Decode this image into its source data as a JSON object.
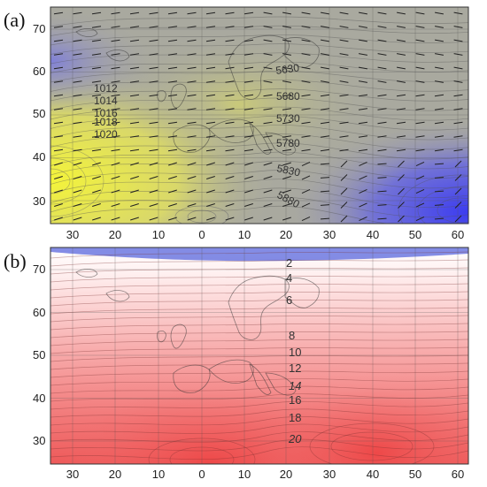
{
  "figure": {
    "panels": [
      {
        "id": "a",
        "label": "(a)",
        "y_ticks": [
          "70",
          "60",
          "50",
          "40",
          "30"
        ],
        "x_ticks": [
          "30",
          "20",
          "10",
          "0",
          "10",
          "20",
          "30",
          "40",
          "50",
          "60"
        ],
        "pressure_labels": [
          "1012",
          "1014",
          "1016",
          "1018",
          "1020"
        ],
        "height_labels": [
          "5630",
          "5680",
          "5730",
          "5780",
          "5830",
          "5880"
        ],
        "colors": {
          "high": "#f2f23a",
          "mid": "#a8a8a0",
          "low": "#4848e8"
        }
      },
      {
        "id": "b",
        "label": "(b)",
        "y_ticks": [
          "70",
          "60",
          "50",
          "40",
          "30"
        ],
        "x_ticks": [
          "30",
          "20",
          "10",
          "0",
          "10",
          "20",
          "30",
          "40",
          "50",
          "60"
        ],
        "temperature_labels": [
          "2",
          "4",
          "6",
          "8",
          "10",
          "12",
          "14",
          "16",
          "18",
          "20"
        ],
        "colors": {
          "warm": "#f05050",
          "cool": "#ffffff",
          "cold": "#6d78e0"
        }
      }
    ]
  },
  "chart_data": [
    {
      "type": "heatmap",
      "panel": "(a)",
      "xlim": [
        -35,
        65
      ],
      "ylim": [
        25,
        75
      ],
      "sea_level_pressure_contours": [
        1012,
        1014,
        1016,
        1018,
        1020
      ],
      "geopotential_height_contours": [
        5630,
        5680,
        5730,
        5780,
        5830,
        5880
      ]
    },
    {
      "type": "heatmap",
      "panel": "(b)",
      "xlim": [
        -35,
        65
      ],
      "ylim": [
        25,
        75
      ],
      "temperature_contours": [
        2,
        4,
        6,
        8,
        10,
        12,
        14,
        16,
        18,
        20
      ]
    }
  ]
}
